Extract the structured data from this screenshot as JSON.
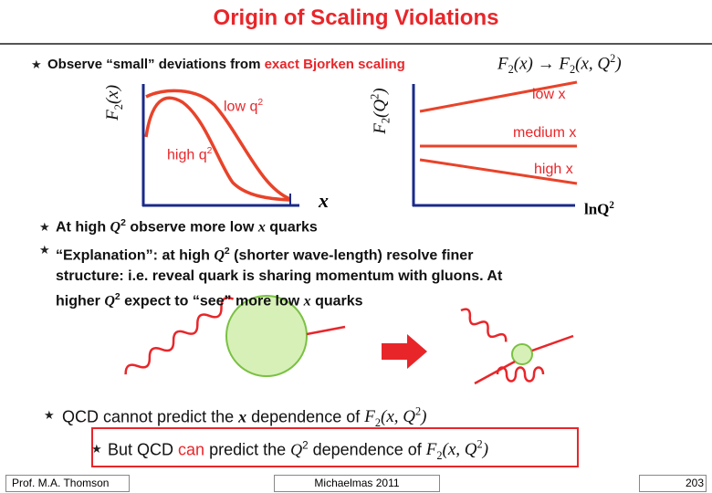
{
  "title": "Origin of Scaling Violations",
  "bullet_1": {
    "text": "Observe “small” deviations from ",
    "highlight": "exact Bjorken scaling"
  },
  "formula_top": {
    "lhs_f": "F",
    "lhs_sub": "2",
    "lhs_arg": "(x)",
    "arrow": "→",
    "rhs_f": "F",
    "rhs_sub": "2",
    "rhs_arg": "(x, Q",
    "rhs_sup": "2",
    "rhs_close": ")"
  },
  "left_plot": {
    "y_label_f": "F",
    "y_label_sub": "2",
    "y_label_arg": "(x)",
    "x_label": "x",
    "low_q": "low q",
    "low_q_sup": "2",
    "high_q": "high q",
    "high_q_sup": "2"
  },
  "right_plot": {
    "y_label_f": "F",
    "y_label_sub": "2",
    "y_label_arg": "(Q",
    "y_label_sup": "2",
    "y_label_close": ")",
    "x_label": "lnQ",
    "x_label_sup": "2",
    "low_x": "low x",
    "medium_x": "medium x",
    "high_x": "high x"
  },
  "bullet_2": [
    "At high ",
    "Q",
    "2",
    " observe more low ",
    "x",
    " quarks"
  ],
  "bullet_3": [
    "“Explanation”: at high ",
    "Q",
    "2",
    " (shorter wave-length) resolve finer structure: i.e. reveal quark is sharing momentum with gluons. At higher ",
    "Q",
    "2",
    " expect to “see” more low ",
    "x",
    " quarks"
  ],
  "bullet_4": [
    "QCD cannot predict the ",
    "x",
    " dependence of "
  ],
  "bullet_5": [
    "But QCD ",
    "can",
    " predict the ",
    "Q",
    "2",
    " dependence of "
  ],
  "formula_f2": {
    "f": "F",
    "sub": "2",
    "arg": "(x, Q",
    "sup": "2",
    "close": ")"
  },
  "footer": {
    "author": "Prof. M.A. Thomson",
    "term": "Michaelmas 2011",
    "page": "203"
  }
}
